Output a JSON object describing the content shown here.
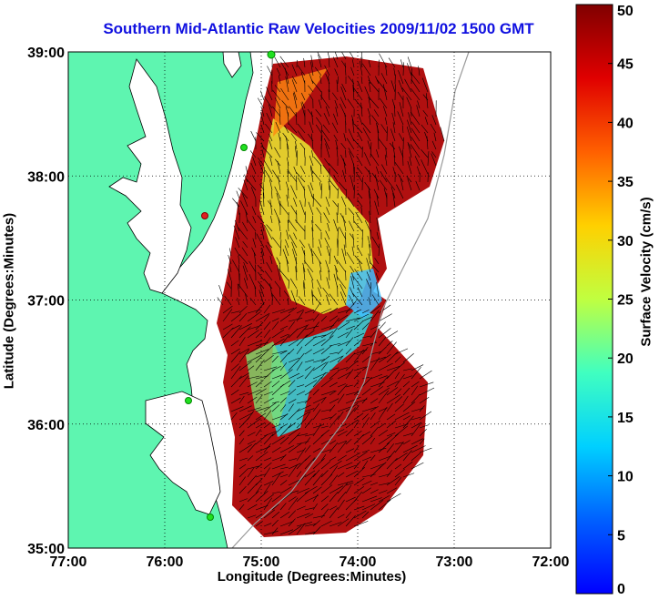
{
  "title": "Southern Mid-Atlantic Raw Velocities 2009/11/02 1500 GMT",
  "xlabel": "Longitude (Degrees:Minutes)",
  "ylabel": "Latitude (Degrees:Minutes)",
  "colorbar_label": "Surface Velocity (cm/s)",
  "chart_data": {
    "type": "heatmap",
    "x_ticks": [
      "77:00",
      "76:00",
      "75:00",
      "74:00",
      "73:00",
      "72:00"
    ],
    "y_ticks": [
      "35:00",
      "36:00",
      "37:00",
      "38:00",
      "39:00"
    ],
    "x_range_deg_west": [
      77,
      72
    ],
    "y_range_deg_north": [
      35,
      39
    ],
    "grid": "dotted",
    "colorbar_ticks": [
      "0",
      "5",
      "10",
      "15",
      "20",
      "25",
      "30",
      "35",
      "40",
      "45",
      "50"
    ],
    "colorbar_range": [
      0,
      50
    ],
    "colormap": "jet",
    "land_color": "#5ef5b0",
    "vector_color": "#000000"
  }
}
